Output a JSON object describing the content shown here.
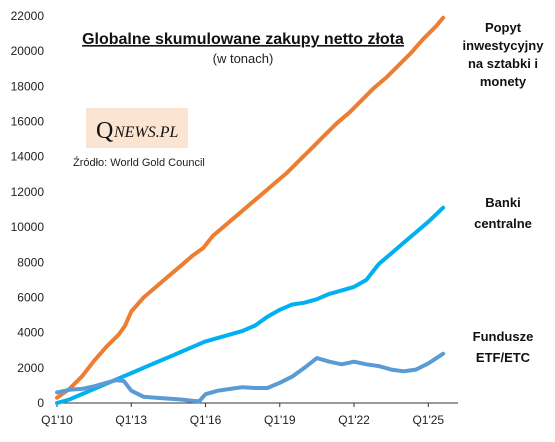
{
  "chart_data": {
    "type": "line",
    "title": "Globalne skumulowane zakupy netto złota",
    "subtitle": "(w tonach)",
    "source": "Źródło: World Gold Council",
    "logo": {
      "big": "Q",
      "small": "NEWS.PL",
      "background": "#fce4d2"
    },
    "xlabel": "",
    "ylabel": "",
    "ylim": [
      0,
      22000
    ],
    "yticks": [
      0,
      2000,
      4000,
      6000,
      8000,
      10000,
      12000,
      14000,
      16000,
      18000,
      20000,
      22000
    ],
    "xrange": [
      2010.0,
      2026.2
    ],
    "xticks": [
      {
        "label": "Q1'10",
        "x": 2010.0
      },
      {
        "label": "Q1'13",
        "x": 2013.0
      },
      {
        "label": "Q1'16",
        "x": 2016.0
      },
      {
        "label": "Q1'19",
        "x": 2019.0
      },
      {
        "label": "Q1'22",
        "x": 2022.0
      },
      {
        "label": "Q1'25",
        "x": 2025.0
      }
    ],
    "grid": false,
    "series": [
      {
        "name": "Popyt inwestycyjny na sztabki i monety",
        "label_lines": [
          "Popyt",
          "inwestycyjny",
          "na sztabki i",
          "monety"
        ],
        "color": "#ed7d31",
        "points": [
          [
            2010.0,
            300
          ],
          [
            2010.5,
            800
          ],
          [
            2011.0,
            1500
          ],
          [
            2011.5,
            2400
          ],
          [
            2012.0,
            3200
          ],
          [
            2012.5,
            3900
          ],
          [
            2012.75,
            4400
          ],
          [
            2013.0,
            5200
          ],
          [
            2013.5,
            6000
          ],
          [
            2014.0,
            6600
          ],
          [
            2014.5,
            7200
          ],
          [
            2015.0,
            7800
          ],
          [
            2015.5,
            8400
          ],
          [
            2015.9,
            8800
          ],
          [
            2016.3,
            9500
          ],
          [
            2016.8,
            10100
          ],
          [
            2017.3,
            10700
          ],
          [
            2017.8,
            11300
          ],
          [
            2018.3,
            11900
          ],
          [
            2018.8,
            12500
          ],
          [
            2019.3,
            13100
          ],
          [
            2019.8,
            13800
          ],
          [
            2020.3,
            14500
          ],
          [
            2020.8,
            15200
          ],
          [
            2021.3,
            15900
          ],
          [
            2021.8,
            16500
          ],
          [
            2022.3,
            17200
          ],
          [
            2022.8,
            17900
          ],
          [
            2023.3,
            18500
          ],
          [
            2023.8,
            19200
          ],
          [
            2024.3,
            19900
          ],
          [
            2024.8,
            20700
          ],
          [
            2025.3,
            21400
          ],
          [
            2025.6,
            21900
          ]
        ]
      },
      {
        "name": "Banki centralne",
        "label_lines": [
          "Banki",
          "centralne"
        ],
        "color": "#00b0f0",
        "points": [
          [
            2010.0,
            0
          ],
          [
            2010.5,
            200
          ],
          [
            2011.0,
            500
          ],
          [
            2011.5,
            800
          ],
          [
            2012.0,
            1100
          ],
          [
            2012.5,
            1400
          ],
          [
            2013.0,
            1700
          ],
          [
            2013.5,
            2000
          ],
          [
            2014.0,
            2300
          ],
          [
            2014.5,
            2600
          ],
          [
            2015.0,
            2900
          ],
          [
            2015.5,
            3200
          ],
          [
            2016.0,
            3500
          ],
          [
            2016.5,
            3700
          ],
          [
            2017.0,
            3900
          ],
          [
            2017.5,
            4100
          ],
          [
            2018.0,
            4400
          ],
          [
            2018.5,
            4900
          ],
          [
            2019.0,
            5300
          ],
          [
            2019.5,
            5600
          ],
          [
            2020.0,
            5700
          ],
          [
            2020.5,
            5900
          ],
          [
            2021.0,
            6200
          ],
          [
            2021.5,
            6400
          ],
          [
            2022.0,
            6600
          ],
          [
            2022.5,
            7000
          ],
          [
            2023.0,
            7900
          ],
          [
            2023.5,
            8500
          ],
          [
            2024.0,
            9100
          ],
          [
            2024.5,
            9700
          ],
          [
            2025.0,
            10300
          ],
          [
            2025.6,
            11100
          ]
        ]
      },
      {
        "name": "Fundusze ETF/ETC",
        "label_lines": [
          "Fundusze",
          "ETF/ETC"
        ],
        "color": "#5b9bd5",
        "points": [
          [
            2010.0,
            600
          ],
          [
            2010.5,
            750
          ],
          [
            2011.0,
            800
          ],
          [
            2011.5,
            950
          ],
          [
            2012.0,
            1150
          ],
          [
            2012.4,
            1300
          ],
          [
            2012.7,
            1250
          ],
          [
            2013.0,
            700
          ],
          [
            2013.5,
            350
          ],
          [
            2014.0,
            300
          ],
          [
            2014.5,
            250
          ],
          [
            2015.0,
            200
          ],
          [
            2015.5,
            120
          ],
          [
            2015.75,
            100
          ],
          [
            2016.0,
            500
          ],
          [
            2016.5,
            700
          ],
          [
            2017.0,
            800
          ],
          [
            2017.5,
            900
          ],
          [
            2018.0,
            850
          ],
          [
            2018.5,
            850
          ],
          [
            2019.0,
            1150
          ],
          [
            2019.5,
            1500
          ],
          [
            2020.0,
            2000
          ],
          [
            2020.5,
            2550
          ],
          [
            2021.0,
            2350
          ],
          [
            2021.5,
            2200
          ],
          [
            2022.0,
            2350
          ],
          [
            2022.5,
            2200
          ],
          [
            2023.0,
            2100
          ],
          [
            2023.5,
            1900
          ],
          [
            2024.0,
            1800
          ],
          [
            2024.5,
            1900
          ],
          [
            2025.0,
            2250
          ],
          [
            2025.6,
            2800
          ]
        ]
      }
    ]
  }
}
